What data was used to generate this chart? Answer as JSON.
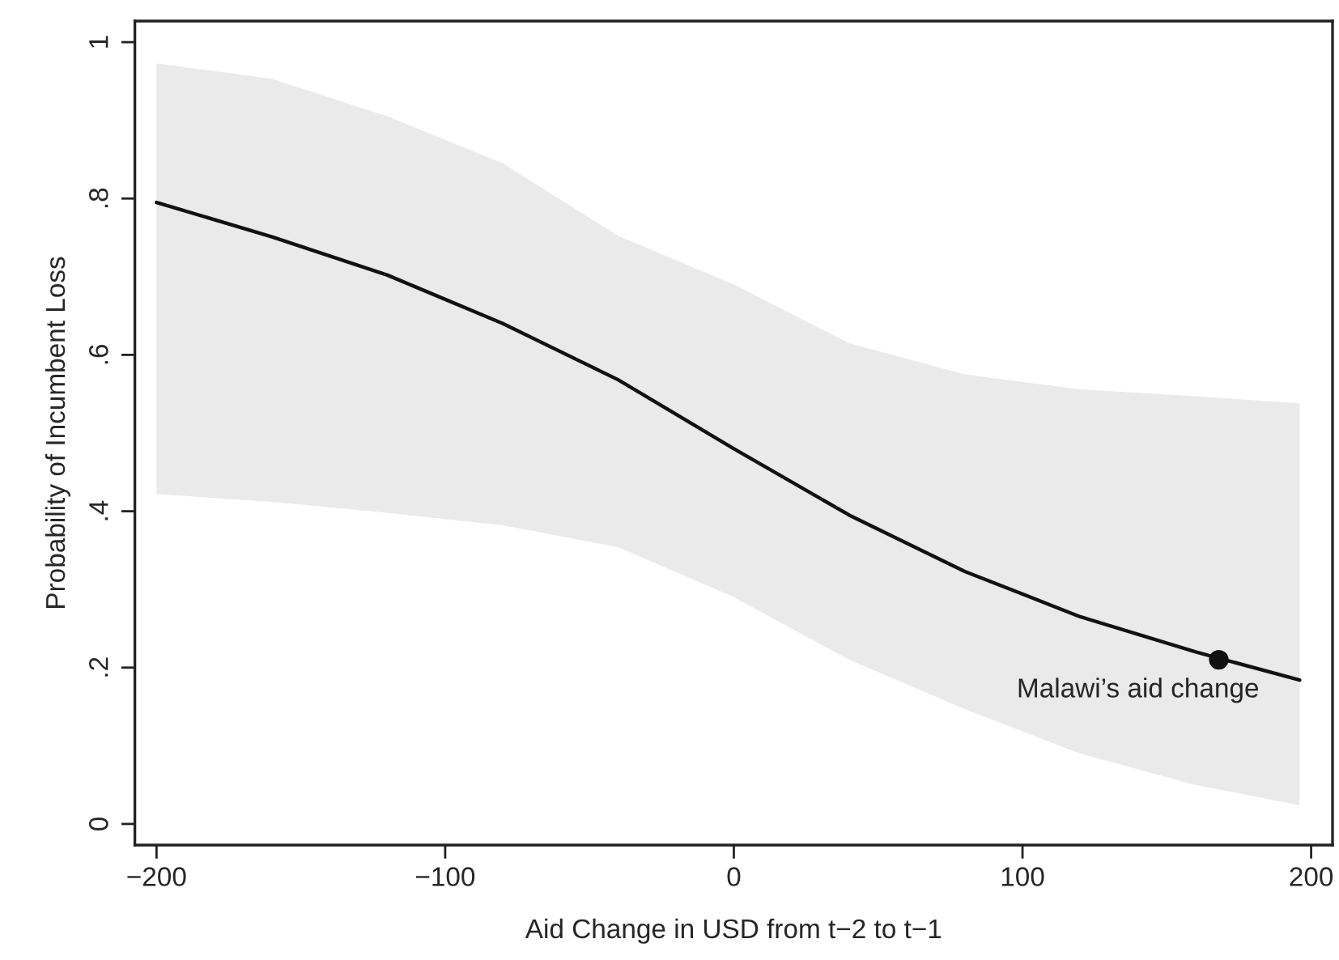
{
  "chart_data": {
    "type": "line",
    "xlabel": "Aid Change in USD from t−2 to t−1",
    "ylabel": "Probability of Incumbent Loss",
    "xlim": [
      -207.5,
      207.4
    ],
    "ylim": [
      -0.027,
      1.027
    ],
    "xticks": [
      {
        "value": -200,
        "label": "−200"
      },
      {
        "value": -100,
        "label": "−100"
      },
      0,
      100,
      200
    ],
    "yticks": [
      0,
      {
        "value": 0.2,
        "label": ".2"
      },
      {
        "value": 0.4,
        "label": ".4"
      },
      {
        "value": 0.6,
        "label": ".6"
      },
      {
        "value": 0.8,
        "label": ".8"
      },
      1
    ],
    "grid": false,
    "legend": false,
    "line_style": "solid",
    "series": [
      {
        "color": "#111111",
        "marker": "none",
        "x": [
          -200,
          -160,
          -120,
          -80,
          -40,
          0,
          40,
          80,
          120,
          160,
          196
        ],
        "values": [
          0.795,
          0.751,
          0.702,
          0.64,
          0.568,
          0.48,
          0.395,
          0.323,
          0.265,
          0.22,
          0.184
        ],
        "lower": [
          0.422,
          0.412,
          0.398,
          0.382,
          0.354,
          0.29,
          0.21,
          0.147,
          0.09,
          0.05,
          0.024
        ],
        "upper": [
          0.973,
          0.953,
          0.905,
          0.845,
          0.752,
          0.69,
          0.615,
          0.575,
          0.556,
          0.547,
          0.538
        ]
      },
      {
        "type": "scatter",
        "color": "#111111",
        "marker": "circle",
        "x": [
          168
        ],
        "values": [
          0.21
        ]
      }
    ],
    "annotations": [
      {
        "text": "Malawi’s aid change",
        "x": 168,
        "y": 0.21
      }
    ]
  }
}
